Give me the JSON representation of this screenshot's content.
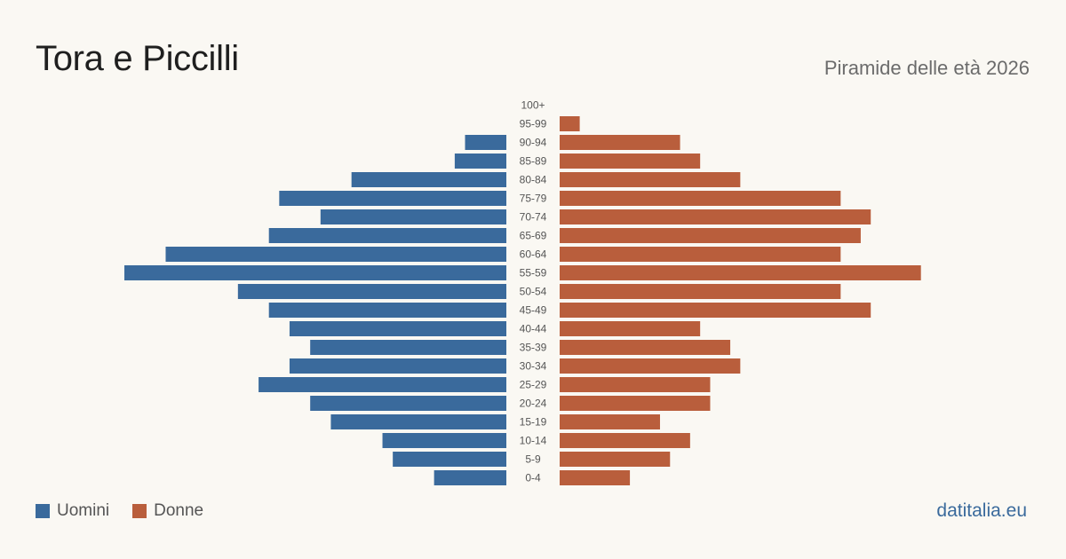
{
  "header": {
    "title": "Tora e Piccilli",
    "subtitle": "Piramide delle età 2026"
  },
  "legend": {
    "men_label": "Uomini",
    "women_label": "Donne"
  },
  "brand": "datitalia.eu",
  "colors": {
    "men": "#3a6a9c",
    "women": "#b95e3c",
    "tick_text": "#555555"
  },
  "chart_data": {
    "type": "bar",
    "orientation": "horizontal-pyramid",
    "categories": [
      "100+",
      "95-99",
      "90-94",
      "85-89",
      "80-84",
      "75-79",
      "70-74",
      "65-69",
      "60-64",
      "55-59",
      "50-54",
      "45-49",
      "40-44",
      "35-39",
      "30-34",
      "25-29",
      "20-24",
      "15-19",
      "10-14",
      "5-9",
      "0-4"
    ],
    "series": [
      {
        "name": "Uomini",
        "side": "left",
        "values": [
          0,
          0,
          4,
          5,
          15,
          22,
          18,
          23,
          33,
          37,
          26,
          23,
          21,
          19,
          21,
          24,
          19,
          17,
          12,
          11,
          7
        ]
      },
      {
        "name": "Donne",
        "side": "right",
        "values": [
          0,
          2,
          12,
          14,
          18,
          28,
          31,
          30,
          28,
          36,
          28,
          31,
          14,
          17,
          18,
          15,
          15,
          10,
          13,
          11,
          7
        ]
      }
    ],
    "xlim": [
      0,
      37
    ]
  }
}
